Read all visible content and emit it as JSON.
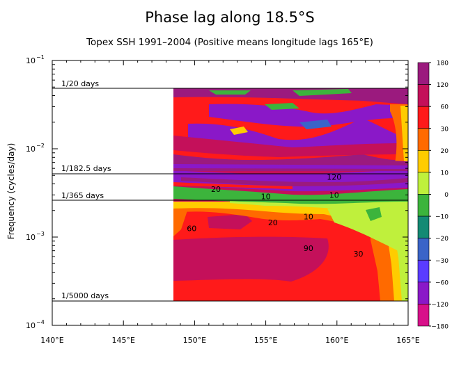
{
  "chart_data": {
    "type": "heatmap",
    "title": "Phase lag along 18.5°S",
    "subtitle": "Topex SSH 1991–2004 (Positive means longitude lags 165°E)",
    "ylabel": "Frequency (cycles/day)",
    "xlabel": "",
    "x_axis": {
      "range": [
        140,
        165
      ],
      "ticks": [
        140,
        145,
        150,
        155,
        160,
        165
      ],
      "tick_labels": [
        "140°E",
        "145°E",
        "150°E",
        "155°E",
        "160°E",
        "165°E"
      ]
    },
    "y_axis": {
      "scale": "log",
      "range": [
        0.0001,
        0.1
      ],
      "ticks": [
        0.1,
        0.01,
        0.001,
        0.0001
      ],
      "tick_labels": [
        {
          "base": "10",
          "exp": "−1"
        },
        {
          "base": "10",
          "exp": "−2"
        },
        {
          "base": "10",
          "exp": "−3"
        },
        {
          "base": "10",
          "exp": "−4"
        }
      ]
    },
    "reference_lines": [
      {
        "label": "1/20 days",
        "freq": 0.05
      },
      {
        "label": "1/182.5 days",
        "freq": 0.00548
      },
      {
        "label": "1/365 days",
        "freq": 0.00274
      },
      {
        "label": "1/5000 days",
        "freq": 0.0002
      }
    ],
    "data_extent": {
      "lon": [
        148.5,
        165
      ],
      "freq": [
        0.0002,
        0.05
      ]
    },
    "colorbar": {
      "levels": [
        180,
        120,
        60,
        30,
        20,
        10,
        0,
        -10,
        -20,
        -30,
        -60,
        -120,
        -180
      ],
      "level_labels": [
        "180",
        "120",
        "60",
        "30",
        "20",
        "10",
        "0",
        "−10",
        "−20",
        "−30",
        "−60",
        "−120",
        "−180"
      ],
      "colors": [
        "#9b1a7e",
        "#c4105a",
        "#ff1a1a",
        "#ff6a00",
        "#ffcc00",
        "#bff03c",
        "#3cb43c",
        "#138a74",
        "#3a64c8",
        "#5a3cff",
        "#8a18c8",
        "#d8108a"
      ]
    },
    "contour_labels": [
      {
        "text": "10",
        "lon": 158.0,
        "freq": 0.0017
      },
      {
        "text": "20",
        "lon": 155.5,
        "freq": 0.00146
      },
      {
        "text": "60",
        "lon": 149.8,
        "freq": 0.00126
      },
      {
        "text": "90",
        "lon": 158.0,
        "freq": 0.00075
      },
      {
        "text": "30",
        "lon": 161.5,
        "freq": 0.00065
      },
      {
        "text": "10",
        "lon": 155.0,
        "freq": 0.0029
      },
      {
        "text": "10",
        "lon": 159.8,
        "freq": 0.003
      },
      {
        "text": "20",
        "lon": 151.5,
        "freq": 0.0035
      },
      {
        "text": "120",
        "lon": 159.8,
        "freq": 0.0048
      }
    ]
  }
}
